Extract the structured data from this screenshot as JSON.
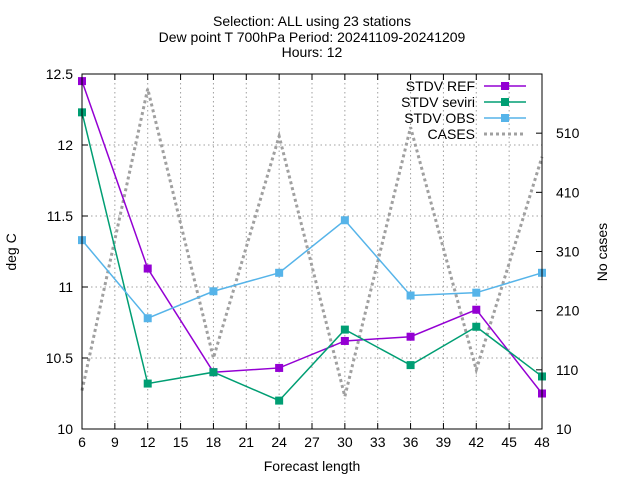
{
  "chart_data": {
    "type": "line",
    "title_lines": [
      "Selection: ALL using    23 stations",
      "Dew point T 700hPa   Period: 20241109-20241209",
      "Hours: 12"
    ],
    "xlabel": "Forecast length",
    "ylabel": "deg C",
    "y2label": "No cases",
    "xlim": [
      6,
      48
    ],
    "xticks": [
      6,
      9,
      12,
      15,
      18,
      21,
      24,
      27,
      30,
      33,
      36,
      39,
      42,
      45,
      48
    ],
    "ylim": [
      10,
      12.5
    ],
    "yticks": [
      "10",
      "10.5",
      "11",
      "11.5",
      "12",
      "12.5"
    ],
    "y2lim": [
      10,
      610
    ],
    "y2ticks": [
      10,
      110,
      210,
      310,
      410,
      510
    ],
    "grid": true,
    "legend_position": "top-right",
    "x": [
      6,
      12,
      18,
      24,
      30,
      36,
      42,
      48
    ],
    "series": [
      {
        "name": "STDV REF",
        "color": "#9400d3",
        "marker": "square",
        "values": [
          12.45,
          11.13,
          10.4,
          10.43,
          10.62,
          10.65,
          10.84,
          10.25
        ]
      },
      {
        "name": "STDV seviri",
        "color": "#009e73",
        "marker": "square",
        "values": [
          12.23,
          10.32,
          10.4,
          10.2,
          10.7,
          10.45,
          10.72,
          10.37
        ]
      },
      {
        "name": "STDV OBS",
        "color": "#56b4e9",
        "marker": "square",
        "values": [
          11.33,
          10.78,
          10.97,
          11.1,
          11.47,
          10.94,
          10.96,
          11.1
        ]
      }
    ],
    "cases": {
      "name": "CASES",
      "color": "#a0a0a0",
      "axis": "y2",
      "x": [
        6,
        12,
        18,
        24,
        30,
        36,
        42,
        48
      ],
      "values": [
        75,
        585,
        130,
        505,
        65,
        520,
        110,
        470
      ]
    }
  }
}
